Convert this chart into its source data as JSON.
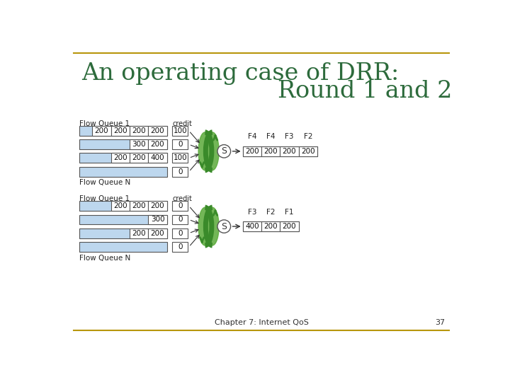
{
  "title_line1": "An operating case of DRR:",
  "title_line2": "Round 1 and 2",
  "title_color": "#2D6B3C",
  "bg_color": "#FFFFFF",
  "border_color": "#B8960C",
  "box_fill": "#BDD7EE",
  "box_edge": "#555555",
  "footnote": "Chapter 7: Internet QoS",
  "page_num": "37",
  "diagram1": {
    "label": "Flow Queue 1",
    "credit_label": "credit",
    "rows": [
      {
        "cells": [
          "200",
          "200",
          "200",
          "200"
        ],
        "credit": "100"
      },
      {
        "cells": [
          "300",
          "200"
        ],
        "credit": "0"
      },
      {
        "cells": [
          "200",
          "200",
          "400"
        ],
        "credit": "100"
      },
      {
        "cells": [],
        "credit": "0"
      }
    ],
    "queue_n_label": "Flow Queue N",
    "output_labels": [
      "F4",
      "F4",
      "F3",
      "F2"
    ],
    "output_cells": [
      "200",
      "200",
      "200",
      "200"
    ]
  },
  "diagram2": {
    "label": "Flow Queue 1",
    "credit_label": "credit",
    "rows": [
      {
        "cells": [
          "200",
          "200",
          "200"
        ],
        "credit": "0"
      },
      {
        "cells": [
          "300"
        ],
        "credit": "0"
      },
      {
        "cells": [
          "200",
          "200"
        ],
        "credit": "0"
      },
      {
        "cells": [],
        "credit": "0"
      }
    ],
    "queue_n_label": "Flow Queue N",
    "output_labels": [
      "F3",
      "F2",
      "F1"
    ],
    "output_cells": [
      "400",
      "200",
      "200"
    ]
  }
}
